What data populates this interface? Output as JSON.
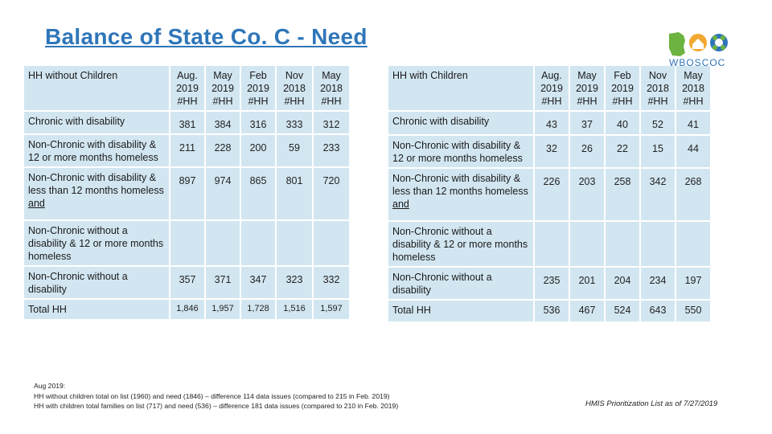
{
  "title": "Balance of State Co. C - Need",
  "logo_text": "WBOSCOC",
  "colors": {
    "title": "#2f76b9",
    "cell_bg": "#d2e6f1",
    "total_purple": "#5b2a86",
    "logo_green": "#6cb33f",
    "logo_blue": "#2f76b9"
  },
  "columns": [
    "Aug. 2019 #HH",
    "May 2019 #HH",
    "Feb 2019 #HH",
    "Nov 2018 #HH",
    "May 2018 #HH"
  ],
  "left_table": {
    "header": "HH without Children",
    "rows": [
      {
        "label": "Chronic with disability",
        "values": [
          "381",
          "384",
          "316",
          "333",
          "312"
        ]
      },
      {
        "label": "Non-Chronic with disability & 12 or more months homeless",
        "values": [
          "211",
          "228",
          "200",
          "59",
          "233"
        ]
      },
      {
        "label": "Non-Chronic with disability & less than 12 months homeless",
        "label_suffix": "and",
        "values": [
          "897",
          "974",
          "865",
          "801",
          "720"
        ]
      },
      {
        "label": "Non-Chronic without a disability & 12 or more months homeless",
        "values": [
          "",
          "",
          "",
          "",
          ""
        ]
      },
      {
        "label": "Non-Chronic without a disability",
        "values": [
          "357",
          "371",
          "347",
          "323",
          "332"
        ]
      },
      {
        "label": "Total HH",
        "values": [
          "1,846",
          "1,957",
          "1,728",
          "1,516",
          "1,597"
        ]
      }
    ]
  },
  "right_table": {
    "header": "HH with Children",
    "rows": [
      {
        "label": "Chronic with disability",
        "values": [
          "43",
          "37",
          "40",
          "52",
          "41"
        ]
      },
      {
        "label": "Non-Chronic with disability & 12 or more months homeless",
        "values": [
          "32",
          "26",
          "22",
          "15",
          "44"
        ]
      },
      {
        "label": "Non-Chronic with disability & less than 12 months homeless",
        "label_suffix": "and",
        "values": [
          "226",
          "203",
          "258",
          "342",
          "268"
        ]
      },
      {
        "label": "Non-Chronic without a disability & 12 or more months homeless",
        "values": [
          "",
          "",
          "",
          "",
          ""
        ]
      },
      {
        "label": "Non-Chronic without a disability",
        "values": [
          "235",
          "201",
          "204",
          "234",
          "197"
        ]
      },
      {
        "label": "Total HH",
        "values": [
          "536",
          "467",
          "524",
          "643",
          "550"
        ]
      }
    ]
  },
  "footnotes": [
    "Aug 2019:",
    "HH without children total on list (1960) and need (1846) – difference 114 data issues (compared to 215 in Feb. 2019)",
    "HH with children total families on list (717) and need (536) – difference 181 data issues (compared to 210 in Feb. 2019)"
  ],
  "source": "HMIS Prioritization List as of 7/27/2019"
}
